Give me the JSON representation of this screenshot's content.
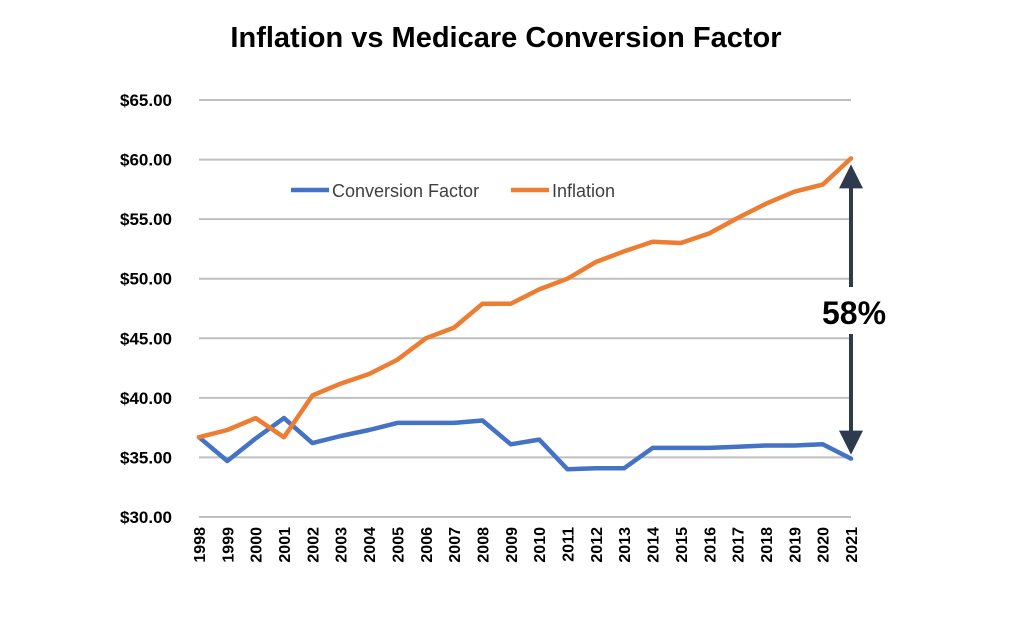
{
  "chart_data": {
    "type": "line",
    "title": "Inflation vs Medicare Conversion Factor",
    "xlabel": "",
    "ylabel": "",
    "categories": [
      "1998",
      "1999",
      "2000",
      "2001",
      "2002",
      "2003",
      "2004",
      "2005",
      "2006",
      "2007",
      "2008",
      "2009",
      "2010",
      "2011",
      "2012",
      "2013",
      "2014",
      "2015",
      "2016",
      "2017",
      "2018",
      "2019",
      "2020",
      "2021"
    ],
    "series": [
      {
        "name": "Conversion Factor",
        "color": "#4472C4",
        "values": [
          36.7,
          34.7,
          36.6,
          38.3,
          36.2,
          36.8,
          37.3,
          37.9,
          37.9,
          37.9,
          38.1,
          36.1,
          36.5,
          34.0,
          34.1,
          34.1,
          35.8,
          35.8,
          35.8,
          35.9,
          36.0,
          36.0,
          36.1,
          34.9
        ]
      },
      {
        "name": "Inflation",
        "color": "#ED7D31",
        "values": [
          36.7,
          37.3,
          38.3,
          36.7,
          40.2,
          41.2,
          42.0,
          43.2,
          45.0,
          45.9,
          47.9,
          47.9,
          49.1,
          50.0,
          51.4,
          52.3,
          53.1,
          53.0,
          53.8,
          55.1,
          56.3,
          57.3,
          57.9,
          60.1
        ]
      }
    ],
    "ylim": [
      30,
      65
    ],
    "yticks": [
      30,
      35,
      40,
      45,
      50,
      55,
      60,
      65
    ],
    "ytick_labels": [
      "$30.00",
      "$35.00",
      "$40.00",
      "$45.00",
      "$50.00",
      "$55.00",
      "$60.00",
      "$65.00"
    ],
    "grid": true,
    "legend_position": "top-left",
    "annotation": {
      "label": "58%",
      "color": "#2E3A4D"
    }
  }
}
